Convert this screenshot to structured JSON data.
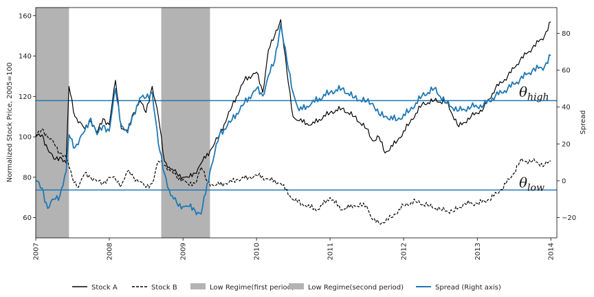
{
  "chart_data": {
    "type": "line",
    "title": "",
    "x_range": [
      "2007-01-01",
      "2014-01-31"
    ],
    "x_ticks": [
      "2007",
      "2008",
      "2009",
      "2010",
      "2011",
      "2012",
      "2013",
      "2014"
    ],
    "ylabel_left": "Normalized Stock Price, 2005=100",
    "ylim_left": [
      50,
      164
    ],
    "yticks_left": [
      "60",
      "80",
      "100",
      "120",
      "140",
      "160"
    ],
    "ylabel_right": "Spread",
    "ylim_right": [
      -31,
      94
    ],
    "yticks_right": [
      "−20",
      "0",
      "20",
      "40",
      "60",
      "80"
    ],
    "thresholds": [
      {
        "label": "θ",
        "sub": "high",
        "value": 43.5,
        "axis": "right"
      },
      {
        "label": "θ",
        "sub": "low",
        "value": -5,
        "axis": "right"
      }
    ],
    "regimes": [
      {
        "name": "Low Regime(first period)",
        "start": "2007-01-01",
        "end": "2007-06-15",
        "color": "#b3b3b3"
      },
      {
        "name": "Low Regime(second period)",
        "start": "2008-09-15",
        "end": "2009-05-15",
        "color": "#b3b3b3"
      }
    ],
    "series": [
      {
        "name": "Stock A",
        "axis": "left",
        "color": "#000000",
        "style": "solid",
        "points": [
          [
            "2007-01-01",
            100
          ],
          [
            "2007-02-01",
            101
          ],
          [
            "2007-03-01",
            94
          ],
          [
            "2007-04-01",
            89
          ],
          [
            "2007-05-01",
            90
          ],
          [
            "2007-06-01",
            87
          ],
          [
            "2007-06-15",
            125
          ],
          [
            "2007-07-15",
            110
          ],
          [
            "2007-09-01",
            104
          ],
          [
            "2007-10-01",
            108
          ],
          [
            "2007-11-01",
            102
          ],
          [
            "2007-12-01",
            109
          ],
          [
            "2008-01-01",
            106
          ],
          [
            "2008-02-01",
            128
          ],
          [
            "2008-03-01",
            104
          ],
          [
            "2008-04-01",
            103
          ],
          [
            "2008-05-01",
            112
          ],
          [
            "2008-06-01",
            118
          ],
          [
            "2008-07-01",
            112
          ],
          [
            "2008-08-01",
            125
          ],
          [
            "2008-09-01",
            110
          ],
          [
            "2008-10-01",
            88
          ],
          [
            "2008-11-01",
            84
          ],
          [
            "2008-12-01",
            82
          ],
          [
            "2009-01-01",
            80
          ],
          [
            "2009-02-01",
            80
          ],
          [
            "2009-03-01",
            82
          ],
          [
            "2009-04-01",
            87
          ],
          [
            "2009-05-15",
            93
          ],
          [
            "2009-07-01",
            101
          ],
          [
            "2009-09-01",
            115
          ],
          [
            "2009-11-01",
            128
          ],
          [
            "2010-01-01",
            132
          ],
          [
            "2010-02-01",
            122
          ],
          [
            "2010-03-01",
            143
          ],
          [
            "2010-04-01",
            150
          ],
          [
            "2010-05-01",
            158
          ],
          [
            "2010-06-01",
            132
          ],
          [
            "2010-07-01",
            110
          ],
          [
            "2010-08-01",
            108
          ],
          [
            "2010-10-01",
            106
          ],
          [
            "2011-01-01",
            112
          ],
          [
            "2011-03-01",
            114
          ],
          [
            "2011-05-01",
            110
          ],
          [
            "2011-07-01",
            104
          ],
          [
            "2011-08-01",
            98
          ],
          [
            "2011-09-01",
            100
          ],
          [
            "2011-10-01",
            92
          ],
          [
            "2011-12-01",
            98
          ],
          [
            "2012-02-01",
            107
          ],
          [
            "2012-04-01",
            116
          ],
          [
            "2012-06-01",
            118
          ],
          [
            "2012-08-01",
            117
          ],
          [
            "2012-10-01",
            105
          ],
          [
            "2012-12-01",
            110
          ],
          [
            "2013-02-01",
            114
          ],
          [
            "2013-04-01",
            124
          ],
          [
            "2013-06-01",
            130
          ],
          [
            "2013-08-01",
            138
          ],
          [
            "2013-10-01",
            144
          ],
          [
            "2013-12-01",
            150
          ],
          [
            "2014-01-01",
            157
          ]
        ]
      },
      {
        "name": "Stock B",
        "axis": "left",
        "color": "#000000",
        "style": "dashed",
        "points": [
          [
            "2007-01-01",
            100
          ],
          [
            "2007-02-01",
            104
          ],
          [
            "2007-03-01",
            100
          ],
          [
            "2007-04-01",
            97
          ],
          [
            "2007-05-01",
            92
          ],
          [
            "2007-06-01",
            90
          ],
          [
            "2007-07-01",
            80
          ],
          [
            "2007-08-01",
            75
          ],
          [
            "2007-09-01",
            82
          ],
          [
            "2007-10-01",
            80
          ],
          [
            "2007-11-01",
            78
          ],
          [
            "2007-12-01",
            77
          ],
          [
            "2008-01-01",
            80
          ],
          [
            "2008-02-01",
            79
          ],
          [
            "2008-03-01",
            76
          ],
          [
            "2008-04-01",
            83
          ],
          [
            "2008-05-01",
            80
          ],
          [
            "2008-06-01",
            78
          ],
          [
            "2008-07-01",
            75
          ],
          [
            "2008-08-01",
            77
          ],
          [
            "2008-09-01",
            88
          ],
          [
            "2008-10-01",
            86
          ],
          [
            "2008-11-01",
            83
          ],
          [
            "2008-12-01",
            80
          ],
          [
            "2009-01-01",
            79
          ],
          [
            "2009-02-01",
            76
          ],
          [
            "2009-03-01",
            77
          ],
          [
            "2009-04-01",
            85
          ],
          [
            "2009-05-01",
            78
          ],
          [
            "2009-06-01",
            76
          ],
          [
            "2009-08-01",
            77
          ],
          [
            "2009-10-01",
            79
          ],
          [
            "2009-12-01",
            80
          ],
          [
            "2010-01-01",
            81
          ],
          [
            "2010-03-01",
            79
          ],
          [
            "2010-05-01",
            77
          ],
          [
            "2010-07-01",
            69
          ],
          [
            "2010-09-01",
            66
          ],
          [
            "2010-11-01",
            64
          ],
          [
            "2011-01-01",
            70
          ],
          [
            "2011-03-01",
            64
          ],
          [
            "2011-05-01",
            66
          ],
          [
            "2011-07-01",
            66
          ],
          [
            "2011-08-01",
            59
          ],
          [
            "2011-09-01",
            57
          ],
          [
            "2011-11-01",
            60
          ],
          [
            "2012-01-01",
            66
          ],
          [
            "2012-03-01",
            68
          ],
          [
            "2012-05-01",
            66
          ],
          [
            "2012-07-01",
            64
          ],
          [
            "2012-09-01",
            63
          ],
          [
            "2012-11-01",
            67
          ],
          [
            "2013-01-01",
            67
          ],
          [
            "2013-03-01",
            69
          ],
          [
            "2013-05-01",
            74
          ],
          [
            "2013-07-01",
            82
          ],
          [
            "2013-08-01",
            88
          ],
          [
            "2013-10-01",
            88
          ],
          [
            "2013-12-01",
            86
          ],
          [
            "2014-01-01",
            88
          ]
        ]
      },
      {
        "name": "Spread (Right axis)",
        "axis": "right",
        "color": "#1f77b4",
        "style": "solid",
        "points": [
          [
            "2007-01-01",
            0
          ],
          [
            "2007-02-01",
            -4
          ],
          [
            "2007-03-01",
            -15
          ],
          [
            "2007-04-01",
            -10
          ],
          [
            "2007-05-01",
            -8
          ],
          [
            "2007-06-01",
            5
          ],
          [
            "2007-06-15",
            25
          ],
          [
            "2007-07-15",
            18
          ],
          [
            "2007-09-01",
            27
          ],
          [
            "2007-10-01",
            34
          ],
          [
            "2007-11-01",
            25
          ],
          [
            "2007-12-01",
            30
          ],
          [
            "2008-01-01",
            27
          ],
          [
            "2008-02-01",
            50
          ],
          [
            "2008-03-01",
            30
          ],
          [
            "2008-04-01",
            26
          ],
          [
            "2008-05-01",
            36
          ],
          [
            "2008-06-01",
            45
          ],
          [
            "2008-07-01",
            45
          ],
          [
            "2008-08-01",
            48
          ],
          [
            "2008-09-01",
            20
          ],
          [
            "2008-10-01",
            4
          ],
          [
            "2008-11-01",
            -8
          ],
          [
            "2008-12-01",
            -12
          ],
          [
            "2009-01-01",
            -14
          ],
          [
            "2009-02-01",
            -14
          ],
          [
            "2009-03-01",
            -16
          ],
          [
            "2009-04-01",
            -18
          ],
          [
            "2009-05-15",
            5
          ],
          [
            "2009-07-01",
            25
          ],
          [
            "2009-09-01",
            33
          ],
          [
            "2009-11-01",
            42
          ],
          [
            "2010-01-01",
            50
          ],
          [
            "2010-02-01",
            46
          ],
          [
            "2010-03-01",
            57
          ],
          [
            "2010-04-01",
            65
          ],
          [
            "2010-05-01",
            85
          ],
          [
            "2010-06-01",
            65
          ],
          [
            "2010-07-01",
            48
          ],
          [
            "2010-08-01",
            38
          ],
          [
            "2010-10-01",
            42
          ],
          [
            "2011-01-01",
            48
          ],
          [
            "2011-03-01",
            50
          ],
          [
            "2011-05-01",
            45
          ],
          [
            "2011-07-01",
            43
          ],
          [
            "2011-08-01",
            42
          ],
          [
            "2011-09-01",
            36
          ],
          [
            "2011-10-01",
            35
          ],
          [
            "2011-12-01",
            33
          ],
          [
            "2012-02-01",
            38
          ],
          [
            "2012-04-01",
            46
          ],
          [
            "2012-06-01",
            50
          ],
          [
            "2012-08-01",
            42
          ],
          [
            "2012-10-01",
            38
          ],
          [
            "2012-12-01",
            40
          ],
          [
            "2013-02-01",
            41
          ],
          [
            "2013-04-01",
            46
          ],
          [
            "2013-06-01",
            50
          ],
          [
            "2013-08-01",
            55
          ],
          [
            "2013-10-01",
            60
          ],
          [
            "2013-12-01",
            62
          ],
          [
            "2014-01-01",
            68
          ]
        ]
      }
    ],
    "legend": {
      "placement": "bottom",
      "entries": [
        {
          "label": "Stock A",
          "kind": "line",
          "color": "#000000",
          "style": "solid"
        },
        {
          "label": "Stock B",
          "kind": "line",
          "color": "#000000",
          "style": "dashed"
        },
        {
          "label": "Low Regime(first period)",
          "kind": "patch",
          "color": "#b3b3b3"
        },
        {
          "label": "Low Regime(second period)",
          "kind": "patch",
          "color": "#b3b3b3"
        },
        {
          "label": "Spread (Right axis)",
          "kind": "line",
          "color": "#1f77b4",
          "style": "solid"
        }
      ]
    }
  }
}
